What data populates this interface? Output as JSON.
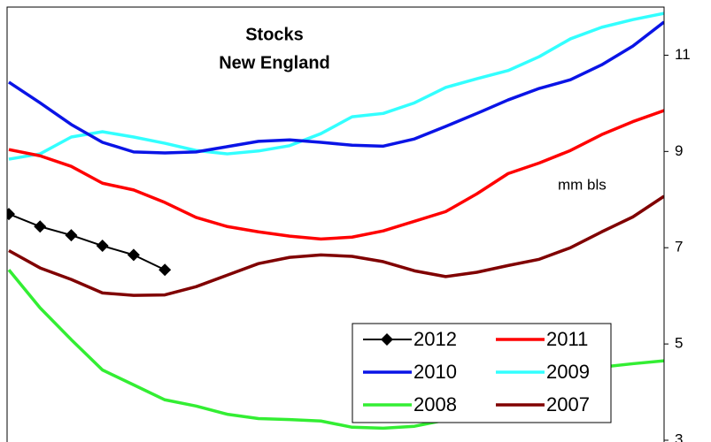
{
  "chart_data": {
    "type": "line",
    "title": "Stocks",
    "subtitle": "New England",
    "annotation": "mm bls",
    "categories": [
      null,
      null,
      null,
      null,
      null,
      null,
      null,
      null,
      null,
      null,
      null,
      null,
      null,
      null,
      null,
      null,
      null,
      null,
      null,
      null,
      null,
      null
    ],
    "ylim": [
      3,
      12
    ],
    "yticks": [
      3,
      5,
      7,
      9,
      11
    ],
    "grid": false,
    "axis_side": "right",
    "series": [
      {
        "name": "2012",
        "color": "#000000",
        "marker": "diamond",
        "values": [
          7.7,
          7.44,
          7.26,
          7.04,
          6.85,
          6.54,
          null,
          null,
          null,
          null,
          null,
          null,
          null,
          null,
          null,
          null,
          null,
          null,
          null,
          null,
          null,
          null
        ]
      },
      {
        "name": "2011",
        "color": "#ff0000",
        "values": [
          9.04,
          8.91,
          8.69,
          8.34,
          8.2,
          7.94,
          7.63,
          7.44,
          7.33,
          7.24,
          7.18,
          7.22,
          7.35,
          7.55,
          7.75,
          8.12,
          8.54,
          8.76,
          9.02,
          9.35,
          9.62,
          9.85
        ]
      },
      {
        "name": "2010",
        "color": "#0a14e6",
        "values": [
          10.44,
          10.01,
          9.56,
          9.19,
          8.99,
          8.97,
          8.99,
          9.1,
          9.21,
          9.24,
          9.19,
          9.13,
          9.11,
          9.26,
          9.52,
          9.79,
          10.07,
          10.31,
          10.49,
          10.8,
          11.19,
          11.69
        ]
      },
      {
        "name": "2009",
        "color": "#33ffff",
        "values": [
          8.84,
          8.95,
          9.3,
          9.41,
          9.3,
          9.17,
          9.02,
          8.95,
          9.01,
          9.12,
          9.37,
          9.72,
          9.79,
          10.01,
          10.33,
          10.51,
          10.68,
          10.97,
          11.34,
          11.58,
          11.74,
          11.87
        ]
      },
      {
        "name": "2008",
        "color": "#33ee33",
        "values": [
          6.54,
          5.75,
          5.09,
          4.46,
          4.15,
          3.84,
          3.71,
          3.54,
          3.45,
          3.43,
          3.4,
          3.27,
          3.25,
          3.29,
          3.42,
          3.69,
          3.91,
          4.24,
          4.54,
          4.52,
          4.59,
          4.65
        ]
      },
      {
        "name": "2007",
        "color": "#800000",
        "values": [
          6.94,
          6.58,
          6.34,
          6.06,
          6.01,
          6.02,
          6.19,
          6.43,
          6.67,
          6.8,
          6.85,
          6.82,
          6.71,
          6.52,
          6.4,
          6.49,
          6.63,
          6.76,
          7.0,
          7.33,
          7.64,
          8.07
        ]
      }
    ]
  }
}
